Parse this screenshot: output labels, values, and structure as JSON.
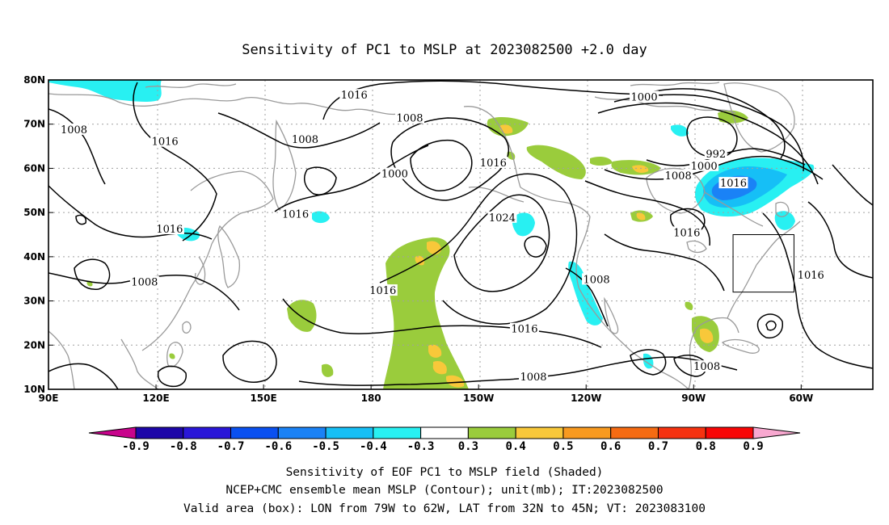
{
  "title": "Sensitivity of PC1 to MSLP at 2023082500 +2.0 day",
  "map": {
    "lon_ticks": [
      "90E",
      "120E",
      "150E",
      "180",
      "150W",
      "120W",
      "90W",
      "60W"
    ],
    "lat_ticks": [
      "80N",
      "70N",
      "60N",
      "50N",
      "40N",
      "30N",
      "20N",
      "10N"
    ],
    "contour_labels": [
      {
        "text": "1016",
        "lon": 175.3,
        "lat": 76.3
      },
      {
        "text": "1000",
        "lon": -103.8,
        "lat": 75.9
      },
      {
        "text": "1008",
        "lon": 97.1,
        "lat": 68.5
      },
      {
        "text": "1016",
        "lon": 122.5,
        "lat": 65.8
      },
      {
        "text": "1008",
        "lon": 161.6,
        "lat": 66.3
      },
      {
        "text": "1008",
        "lon": -169.2,
        "lat": 71.1
      },
      {
        "text": "992",
        "lon": -83.8,
        "lat": 63.0
      },
      {
        "text": "1016",
        "lon": -145.9,
        "lat": 61.0
      },
      {
        "text": "1000",
        "lon": -87.1,
        "lat": 60.3
      },
      {
        "text": "1000",
        "lon": -173.4,
        "lat": 58.5
      },
      {
        "text": "1008",
        "lon": -94.3,
        "lat": 58.1
      },
      {
        "text": "1016",
        "lon": -78.9,
        "lat": 56.4
      },
      {
        "text": "1016",
        "lon": 123.8,
        "lat": 46.0
      },
      {
        "text": "1016",
        "lon": 158.9,
        "lat": 49.4
      },
      {
        "text": "1024",
        "lon": -143.4,
        "lat": 48.6
      },
      {
        "text": "1016",
        "lon": -91.9,
        "lat": 45.2
      },
      {
        "text": "1016",
        "lon": -57.3,
        "lat": 35.6
      },
      {
        "text": "1008",
        "lon": 116.8,
        "lat": 34.0
      },
      {
        "text": "1008",
        "lon": -117.1,
        "lat": 34.6
      },
      {
        "text": "1016",
        "lon": -176.7,
        "lat": 32.1
      },
      {
        "text": "1016",
        "lon": -137.2,
        "lat": 23.4
      },
      {
        "text": "1008",
        "lon": -86.3,
        "lat": 14.9
      },
      {
        "text": "1008",
        "lon": -134.7,
        "lat": 12.6
      }
    ],
    "valid_box": {
      "lon_min": -79,
      "lon_max": -62,
      "lat_min": 32,
      "lat_max": 45
    }
  },
  "colorbar": {
    "levels": [
      "-0.9",
      "-0.8",
      "-0.7",
      "-0.6",
      "-0.5",
      "-0.4",
      "-0.3",
      "0.3",
      "0.4",
      "0.5",
      "0.6",
      "0.7",
      "0.8",
      "0.9"
    ],
    "colors": [
      "#c8048c",
      "#1d06a8",
      "#2a16d8",
      "#0a50f0",
      "#1a82f6",
      "#16bff6",
      "#28f0f2",
      "#ffffff",
      "#9acc3c",
      "#f8c83a",
      "#f89a20",
      "#f66b12",
      "#f63210",
      "#f80606",
      "#f8a8d0"
    ]
  },
  "captions": [
    "Sensitivity of EOF PC1 to MSLP field (Shaded)",
    "NCEP+CMC ensemble mean MSLP (Contour); unit(mb); IT:2023082500",
    "Valid area (box): LON from 79W to 62W, LAT from 32N to 45N; VT: 2023083100"
  ]
}
